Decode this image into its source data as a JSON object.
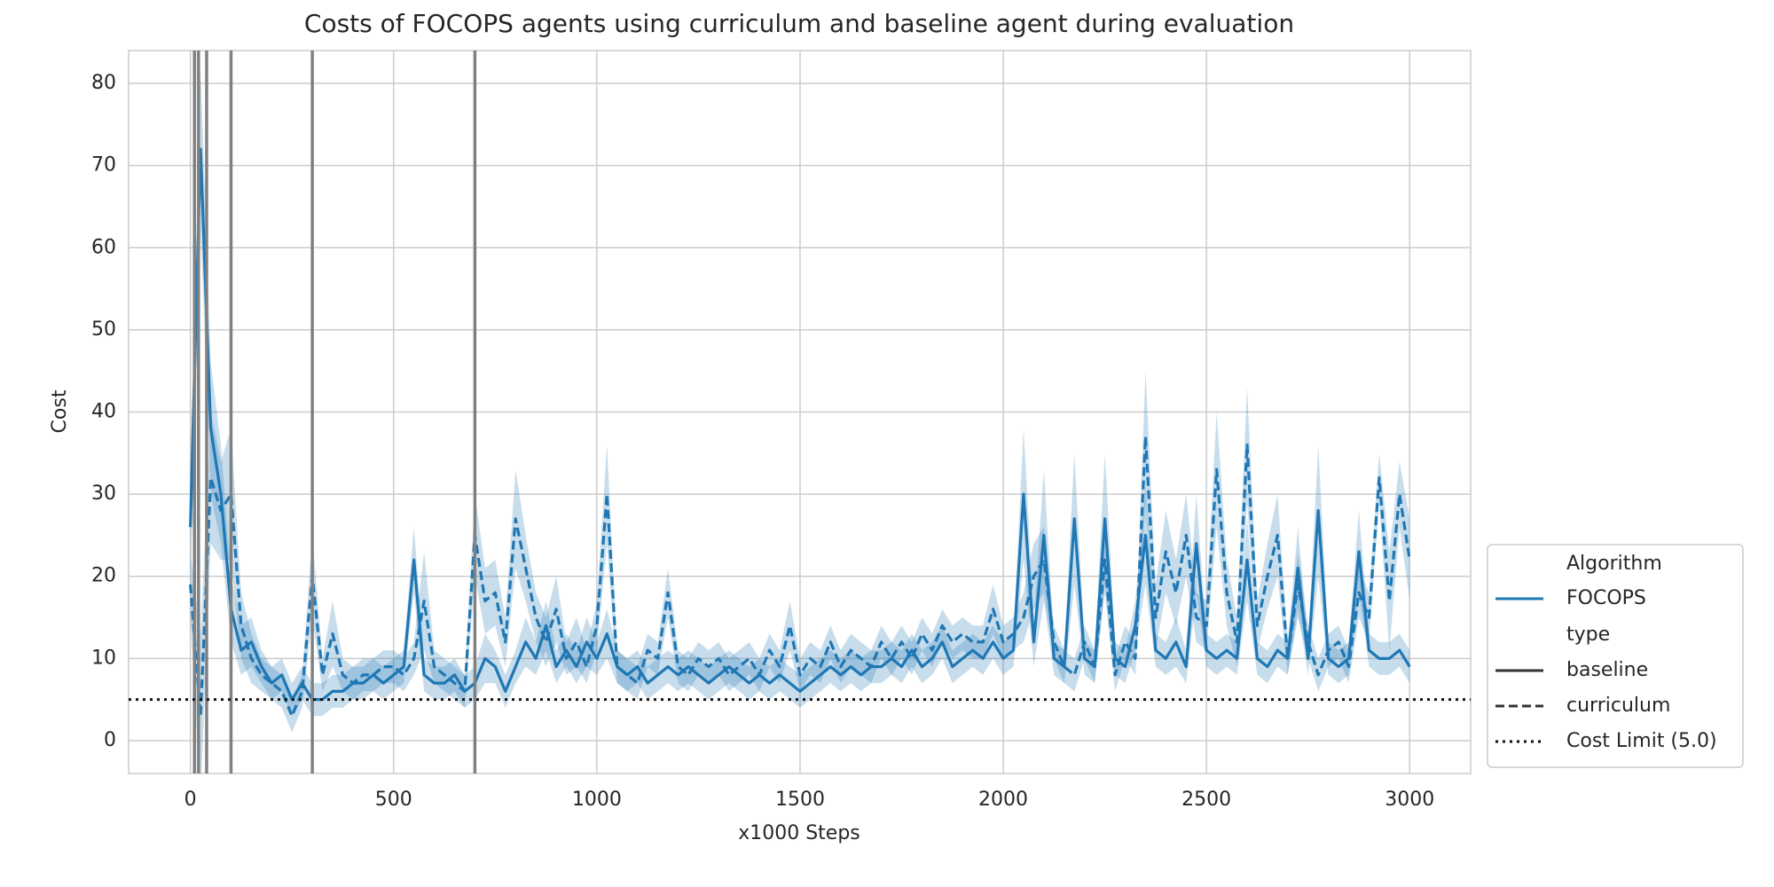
{
  "chart_data": {
    "type": "line",
    "title": "Costs of FOCOPS agents using curriculum and baseline agent during evaluation",
    "xlabel": "x1000 Steps",
    "ylabel": "Cost",
    "x": [
      0,
      25,
      50,
      75,
      100,
      125,
      150,
      175,
      200,
      225,
      250,
      275,
      300,
      325,
      350,
      375,
      400,
      425,
      450,
      475,
      500,
      525,
      550,
      575,
      600,
      625,
      650,
      675,
      700,
      725,
      750,
      775,
      800,
      825,
      850,
      875,
      900,
      925,
      950,
      975,
      1000,
      1025,
      1050,
      1075,
      1100,
      1125,
      1150,
      1175,
      1200,
      1225,
      1250,
      1275,
      1300,
      1325,
      1350,
      1375,
      1400,
      1425,
      1450,
      1475,
      1500,
      1525,
      1550,
      1575,
      1600,
      1625,
      1650,
      1675,
      1700,
      1725,
      1750,
      1775,
      1800,
      1825,
      1850,
      1875,
      1900,
      1925,
      1950,
      1975,
      2000,
      2025,
      2050,
      2075,
      2100,
      2125,
      2150,
      2175,
      2200,
      2225,
      2250,
      2275,
      2300,
      2325,
      2350,
      2375,
      2400,
      2425,
      2450,
      2475,
      2500,
      2525,
      2550,
      2575,
      2600,
      2625,
      2650,
      2675,
      2700,
      2725,
      2750,
      2775,
      2800,
      2825,
      2850,
      2875,
      2900,
      2925,
      2950,
      2975,
      3000
    ],
    "series": [
      {
        "name": "baseline",
        "color": "#1f77b4",
        "linestyle": "solid",
        "values": [
          26,
          72,
          38,
          30,
          16,
          11,
          12,
          9,
          7,
          8,
          5,
          7,
          5,
          5,
          6,
          6,
          7,
          7,
          8,
          7,
          8,
          9,
          22,
          8,
          7,
          7,
          8,
          6,
          7,
          10,
          9,
          6,
          9,
          12,
          10,
          14,
          9,
          11,
          9,
          12,
          10,
          13,
          9,
          8,
          9,
          7,
          8,
          9,
          8,
          9,
          8,
          7,
          8,
          9,
          8,
          7,
          8,
          7,
          8,
          7,
          6,
          7,
          8,
          9,
          8,
          9,
          8,
          9,
          9,
          10,
          9,
          11,
          9,
          10,
          12,
          9,
          10,
          11,
          10,
          12,
          10,
          11,
          30,
          12,
          25,
          10,
          9,
          27,
          10,
          9,
          27,
          10,
          9,
          14,
          25,
          11,
          10,
          12,
          9,
          24,
          11,
          10,
          11,
          10,
          22,
          10,
          9,
          11,
          10,
          21,
          10,
          28,
          10,
          9,
          10,
          23,
          11,
          10,
          10,
          11,
          9
        ],
        "errors": [
          7,
          10,
          8,
          6,
          4,
          3,
          3,
          2,
          2,
          2,
          2,
          2,
          2,
          2,
          2,
          2,
          2,
          2,
          2,
          2,
          2,
          2,
          4,
          2,
          2,
          2,
          2,
          2,
          2,
          3,
          2,
          2,
          2,
          3,
          2,
          3,
          2,
          2,
          2,
          3,
          2,
          3,
          2,
          2,
          2,
          2,
          2,
          2,
          2,
          2,
          2,
          2,
          2,
          2,
          2,
          2,
          2,
          2,
          2,
          2,
          2,
          2,
          2,
          2,
          2,
          2,
          2,
          2,
          2,
          2,
          2,
          2,
          2,
          2,
          2,
          2,
          2,
          2,
          2,
          2,
          2,
          2,
          8,
          3,
          8,
          2,
          2,
          8,
          2,
          2,
          8,
          2,
          2,
          3,
          6,
          2,
          2,
          3,
          2,
          6,
          2,
          2,
          2,
          2,
          5,
          2,
          2,
          2,
          2,
          5,
          2,
          8,
          2,
          2,
          2,
          5,
          2,
          2,
          2,
          2,
          2
        ]
      },
      {
        "name": "curriculum",
        "color": "#1f77b4",
        "linestyle": "dashed",
        "values": [
          19,
          3,
          32,
          28,
          30,
          14,
          10,
          8,
          7,
          6,
          3,
          6,
          20,
          8,
          13,
          8,
          7,
          8,
          8,
          9,
          9,
          8,
          10,
          17,
          9,
          8,
          7,
          6,
          25,
          17,
          18,
          12,
          27,
          21,
          15,
          12,
          16,
          10,
          12,
          9,
          14,
          30,
          9,
          8,
          7,
          11,
          10,
          18,
          9,
          8,
          10,
          9,
          10,
          8,
          9,
          10,
          8,
          11,
          9,
          14,
          8,
          10,
          9,
          12,
          9,
          11,
          10,
          9,
          12,
          10,
          12,
          10,
          13,
          11,
          14,
          12,
          13,
          12,
          12,
          16,
          12,
          13,
          15,
          20,
          22,
          12,
          9,
          8,
          12,
          9,
          22,
          8,
          12,
          10,
          37,
          15,
          23,
          18,
          25,
          15,
          14,
          33,
          18,
          12,
          36,
          14,
          20,
          25,
          10,
          19,
          12,
          8,
          11,
          12,
          9,
          18,
          15,
          32,
          17,
          30,
          22
        ],
        "errors": [
          4,
          10,
          8,
          6,
          8,
          4,
          3,
          2,
          2,
          2,
          2,
          2,
          5,
          2,
          4,
          2,
          2,
          2,
          2,
          2,
          2,
          2,
          2,
          6,
          2,
          2,
          2,
          2,
          5,
          4,
          4,
          3,
          6,
          4,
          3,
          3,
          4,
          2,
          3,
          2,
          3,
          6,
          2,
          2,
          2,
          2,
          2,
          3,
          2,
          2,
          2,
          2,
          2,
          2,
          2,
          2,
          2,
          2,
          2,
          3,
          2,
          2,
          2,
          2,
          2,
          2,
          2,
          2,
          2,
          2,
          2,
          2,
          2,
          2,
          2,
          2,
          2,
          2,
          2,
          3,
          2,
          2,
          3,
          4,
          4,
          2,
          2,
          2,
          2,
          2,
          4,
          2,
          2,
          2,
          8,
          4,
          5,
          4,
          5,
          3,
          3,
          7,
          4,
          3,
          7,
          3,
          4,
          5,
          2,
          4,
          2,
          2,
          2,
          2,
          2,
          3,
          3,
          3,
          6,
          4,
          5
        ]
      }
    ],
    "vlines": [
      10,
      20,
      40,
      100,
      300,
      700
    ],
    "vline_color": "#808080",
    "cost_limit": {
      "value": 5,
      "label": "Cost Limit (5.0)"
    },
    "legend": {
      "title": "Algorithm",
      "algorithm": "FOCOPS",
      "style_title": "type",
      "corner": "lower right"
    },
    "xlim": [
      -152,
      3150
    ],
    "ylim": [
      -4,
      84
    ],
    "xticks": [
      0,
      500,
      1000,
      1500,
      2000,
      2500,
      3000
    ],
    "yticks": [
      0,
      10,
      20,
      30,
      40,
      50,
      60,
      70,
      80
    ],
    "grid": true
  }
}
